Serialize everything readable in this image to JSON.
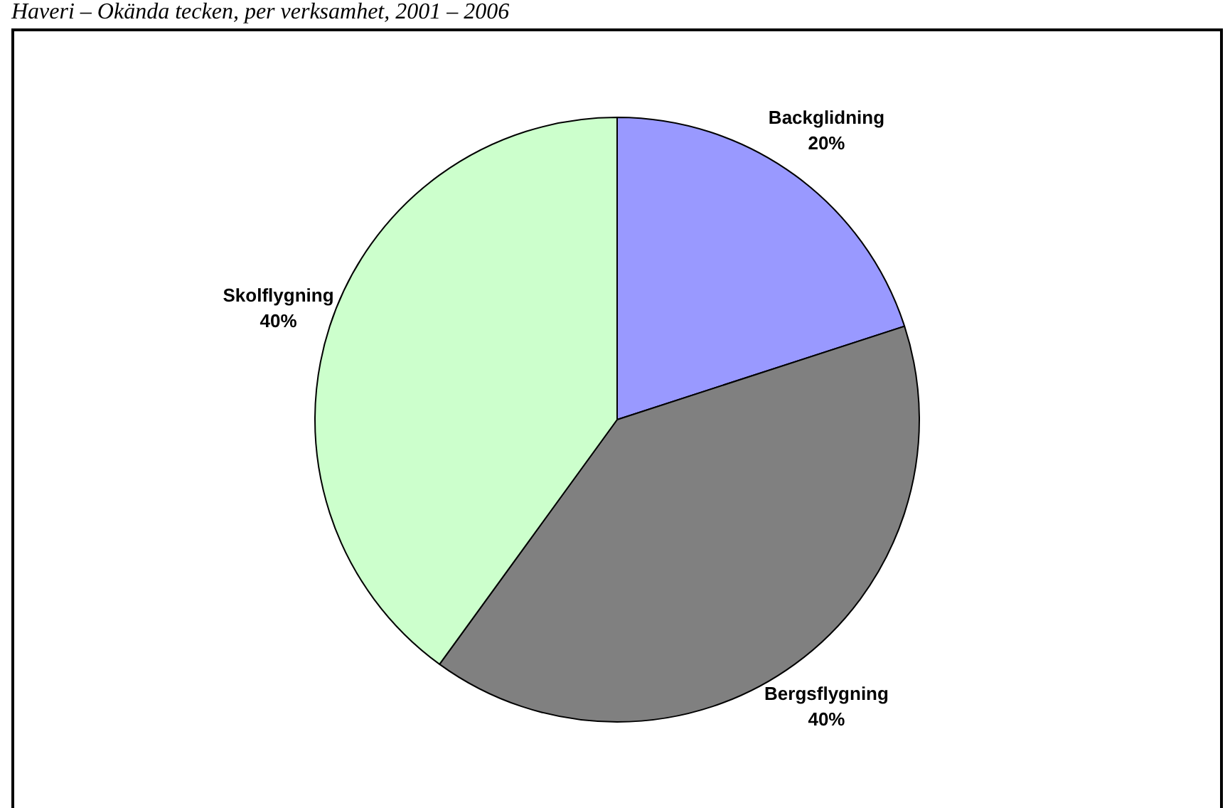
{
  "chart_data": {
    "type": "pie",
    "title": "Haveri – Okända tecken, per verksamhet, 2001 – 2006",
    "categories": [
      "Backglidning",
      "Bergsflygning",
      "Skolflygning"
    ],
    "values": [
      20,
      40,
      40
    ],
    "colors": [
      "#9999ff",
      "#808080",
      "#ccffcc"
    ],
    "value_labels": [
      "20%",
      "40%",
      "40%"
    ]
  }
}
